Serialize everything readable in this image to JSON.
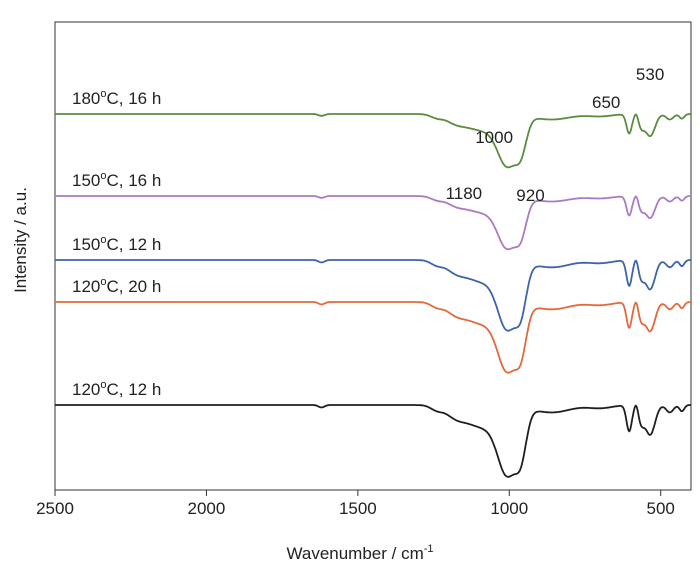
{
  "chart_data": {
    "type": "line",
    "title": "",
    "xlabel": "Wavenumber / cm",
    "xlabel_sup": "-1",
    "ylabel": "Intensity / a.u.",
    "xlim": [
      2500,
      400
    ],
    "x_reversed": true,
    "x_ticks": [
      "2500",
      "2000",
      "1500",
      "1000",
      "500"
    ],
    "y_ticks_shown": false,
    "grid": false,
    "series": [
      {
        "label_main": "180",
        "label_sup": "o",
        "label_rest": "C, 16 h",
        "color": "#5b8c3e",
        "offset": 4
      },
      {
        "label_main": "150",
        "label_sup": "o",
        "label_rest": "C, 16 h",
        "color": "#a87bc4",
        "offset": 3
      },
      {
        "label_main": "150",
        "label_sup": "o",
        "label_rest": "C, 12 h",
        "color": "#3d64a8",
        "offset": 2
      },
      {
        "label_main": "120",
        "label_sup": "o",
        "label_rest": "C, 20 h",
        "color": "#e06a3c",
        "offset": 1
      },
      {
        "label_main": "120",
        "label_sup": "o",
        "label_rest": "C, 12 h",
        "color": "#1f1f1f",
        "offset": 0
      }
    ],
    "annotations": [
      {
        "text": "530",
        "x": 535
      },
      {
        "text": "650",
        "x": 680
      },
      {
        "text": "1000",
        "x": 1050
      },
      {
        "text": "1180",
        "x": 1150
      },
      {
        "text": "920",
        "x": 930
      }
    ]
  }
}
